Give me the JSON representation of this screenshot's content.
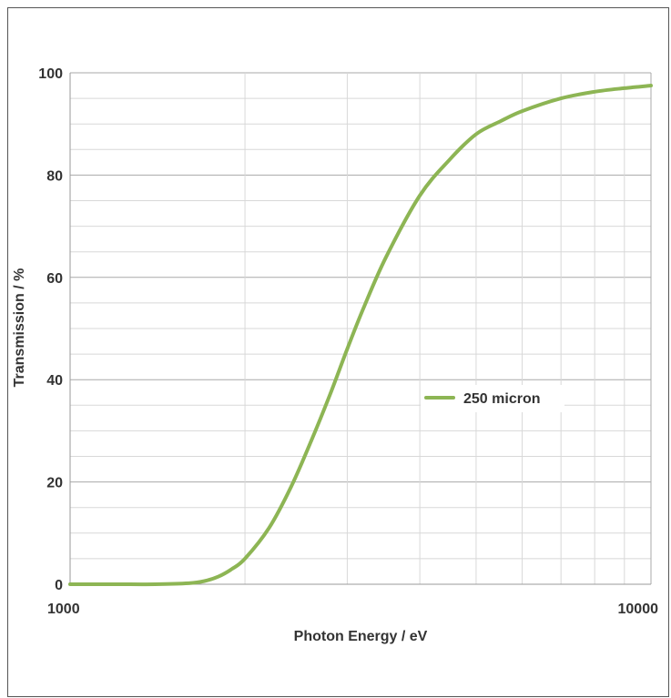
{
  "chart_data": {
    "type": "line",
    "xlabel": "Photon Energy / eV",
    "ylabel": "Transmission / %",
    "x_scale": "log",
    "xlim": [
      1000,
      10000
    ],
    "ylim": [
      0,
      100
    ],
    "x_ticks": [
      "1000",
      "10000"
    ],
    "y_ticks": [
      "0",
      "20",
      "40",
      "60",
      "80",
      "100"
    ],
    "grid": true,
    "legend": "center-right",
    "series": [
      {
        "name": "250 micron",
        "color": "#8db554",
        "x": [
          1000,
          1200,
          1400,
          1600,
          1700,
          1800,
          1900,
          2000,
          2200,
          2400,
          2600,
          2800,
          3000,
          3200,
          3500,
          4000,
          4500,
          5000,
          5500,
          6000,
          7000,
          8000,
          9000,
          10000
        ],
        "y": [
          0,
          0,
          0,
          0.2,
          0.6,
          1.5,
          3.0,
          5.0,
          11,
          19,
          28,
          37,
          46,
          54,
          64,
          76,
          83,
          88,
          90.5,
          92.5,
          95,
          96.3,
          97,
          97.5
        ]
      }
    ]
  }
}
